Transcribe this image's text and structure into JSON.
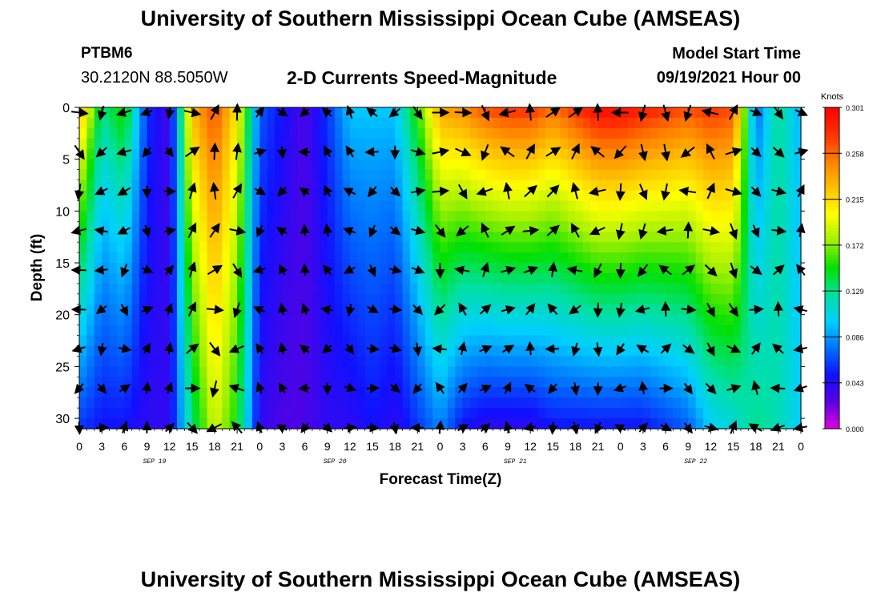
{
  "header": {
    "title": "University of Southern Mississippi Ocean Cube (AMSEAS)",
    "station_id": "PTBM6",
    "station_coords": "30.2120N  88.5050W",
    "chart_title": "2-D Currents Speed-Magnitude",
    "model_start_label": "Model Start Time",
    "model_start_value": "09/19/2021 Hour 00"
  },
  "footer": {
    "title": "University of Southern Mississippi Ocean Cube (AMSEAS)"
  },
  "chart_data": {
    "type": "heatmap",
    "title": "2-D Currents Speed-Magnitude",
    "xlabel": "Forecast Time(Z)",
    "ylabel": "Depth (ft)",
    "x_range_hours": [
      0,
      96
    ],
    "x_ticks": [
      "0",
      "3",
      "6",
      "9",
      "12",
      "15",
      "18",
      "21",
      "0",
      "3",
      "6",
      "9",
      "12",
      "15",
      "18",
      "21",
      "0",
      "3",
      "6",
      "9",
      "12",
      "15",
      "18",
      "21",
      "0",
      "3",
      "6",
      "9",
      "12",
      "15",
      "18",
      "21",
      "0"
    ],
    "date_labels": [
      {
        "label": "SEP 19",
        "hour": 10
      },
      {
        "label": "SEP 20",
        "hour": 34
      },
      {
        "label": "SEP 21",
        "hour": 58
      },
      {
        "label": "SEP 22",
        "hour": 82
      }
    ],
    "y_range": [
      0,
      31
    ],
    "y_inverted": true,
    "y_ticks": [
      0,
      5,
      10,
      15,
      20,
      25,
      30
    ],
    "colorbar": {
      "unit_label": "Knots",
      "min": 0.0,
      "max": 0.301,
      "tick_labels": [
        "0.301",
        "0.258",
        "0.215",
        "0.172",
        "0.129",
        "0.086",
        "0.043",
        "0.000"
      ],
      "colors": [
        "#e000e0",
        "#5a00e0",
        "#1010ff",
        "#0070ff",
        "#00d0ff",
        "#00e0a0",
        "#00e000",
        "#a0f000",
        "#ffff00",
        "#ffc000",
        "#ff8000",
        "#ff3000",
        "#ff0000"
      ]
    },
    "time_profile_hours": [
      0,
      3,
      6,
      9,
      12,
      15,
      18,
      21,
      24,
      27,
      30,
      33,
      36,
      39,
      42,
      45,
      48,
      51,
      54,
      57,
      60,
      63,
      66,
      69,
      72,
      75,
      78,
      81,
      84,
      87,
      90,
      93,
      96
    ],
    "speed_surface_knots": [
      0.24,
      0.13,
      0.16,
      0.06,
      0.03,
      0.23,
      0.27,
      0.21,
      0.07,
      0.05,
      0.03,
      0.06,
      0.1,
      0.1,
      0.1,
      0.16,
      0.24,
      0.25,
      0.27,
      0.28,
      0.28,
      0.26,
      0.28,
      0.3,
      0.3,
      0.29,
      0.28,
      0.27,
      0.28,
      0.27,
      0.07,
      0.13,
      0.09
    ],
    "speed_bottom_knots": [
      0.06,
      0.05,
      0.05,
      0.04,
      0.04,
      0.13,
      0.19,
      0.15,
      0.04,
      0.03,
      0.03,
      0.04,
      0.04,
      0.05,
      0.04,
      0.06,
      0.08,
      0.05,
      0.04,
      0.04,
      0.04,
      0.05,
      0.05,
      0.05,
      0.05,
      0.05,
      0.06,
      0.07,
      0.1,
      0.11,
      0.13,
      0.12,
      0.1
    ],
    "vectors": "current direction arrows on a regular time/depth grid"
  }
}
